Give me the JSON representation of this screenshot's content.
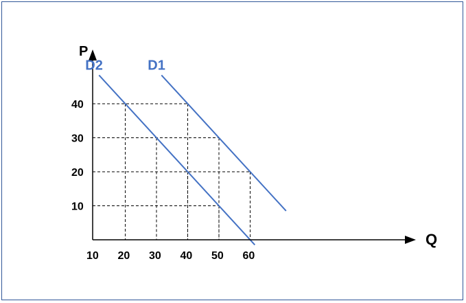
{
  "chart_data": {
    "type": "line",
    "title": "",
    "xlabel": "Q",
    "ylabel": "P",
    "x_ticks": [
      "10",
      "20",
      "30",
      "40",
      "50",
      "60"
    ],
    "y_ticks": [
      "10",
      "20",
      "30",
      "40"
    ],
    "series": [
      {
        "name": "D1",
        "color": "#4472c4",
        "points": [
          [
            40,
            40
          ],
          [
            50,
            30
          ],
          [
            60,
            20
          ]
        ]
      },
      {
        "name": "D2",
        "color": "#4472c4",
        "points": [
          [
            20,
            40
          ],
          [
            30,
            30
          ],
          [
            40,
            20
          ],
          [
            50,
            10
          ]
        ]
      }
    ],
    "guides": [
      {
        "q": 20,
        "p": 40
      },
      {
        "q": 30,
        "p": 30
      },
      {
        "q": 40,
        "p": 20
      },
      {
        "q": 50,
        "p": 10
      },
      {
        "q": 40,
        "p": 40
      },
      {
        "q": 50,
        "p": 30
      },
      {
        "q": 60,
        "p": 20
      }
    ],
    "grid": false,
    "legend": "curve labels"
  }
}
